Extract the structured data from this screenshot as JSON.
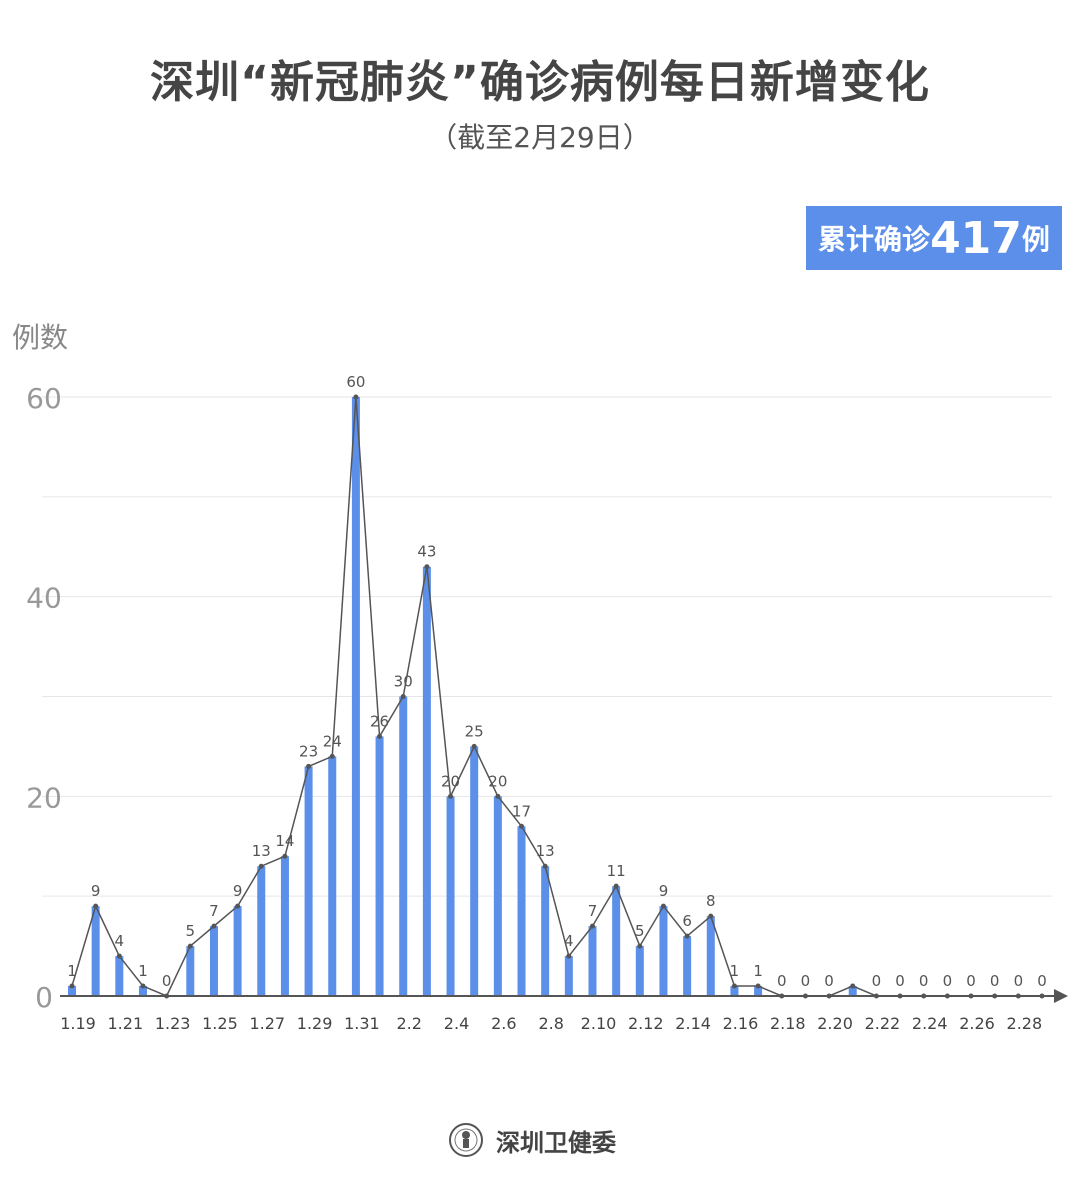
{
  "title": "深圳“新冠肺炎”确诊病例每日新增变化",
  "subtitle": "（截至2月29日）",
  "badge": {
    "prefix": "累计确诊",
    "number": "417",
    "suffix": "例"
  },
  "footer": {
    "org": "深圳卫健委",
    "logo_icon": "health-commission-seal-icon"
  },
  "colors": {
    "bar": "#5b8fe9",
    "line": "#555555",
    "grid": "#e6e6e6",
    "axis": "#555555",
    "badge": "#5b8fe9"
  },
  "chart_data": {
    "type": "bar",
    "overlay": "line",
    "ylabel": "例数",
    "ylim": [
      0,
      60
    ],
    "yticks": [
      0,
      20,
      40,
      60
    ],
    "grid": true,
    "grid_step": 10,
    "categories": [
      "1.19",
      "1.20",
      "1.21",
      "1.22",
      "1.23",
      "1.24",
      "1.25",
      "1.26",
      "1.27",
      "1.28",
      "1.29",
      "1.30",
      "1.31",
      "2.1",
      "2.2",
      "2.3",
      "2.4",
      "2.5",
      "2.6",
      "2.7",
      "2.8",
      "2.9",
      "2.10",
      "2.11",
      "2.12",
      "2.13",
      "2.14",
      "2.15",
      "2.16",
      "2.17",
      "2.18",
      "2.19",
      "2.20",
      "2.21",
      "2.22",
      "2.23",
      "2.24",
      "2.25",
      "2.26",
      "2.27",
      "2.28",
      "2.29"
    ],
    "xtick_labels": [
      "1.19",
      "1.21",
      "1.23",
      "1.25",
      "1.27",
      "1.29",
      "1.31",
      "2.2",
      "2.4",
      "2.6",
      "2.8",
      "2.10",
      "2.12",
      "2.14",
      "2.16",
      "2.18",
      "2.20",
      "2.22",
      "2.24",
      "2.26",
      "2.28"
    ],
    "values": [
      1,
      9,
      4,
      1,
      0,
      5,
      7,
      9,
      13,
      14,
      23,
      24,
      60,
      26,
      30,
      43,
      20,
      25,
      20,
      17,
      13,
      4,
      7,
      11,
      5,
      9,
      6,
      8,
      1,
      1,
      0,
      0,
      0,
      1,
      0,
      0,
      0,
      0,
      0,
      0,
      0,
      0
    ],
    "unlabeled_points": [
      "2.21"
    ]
  }
}
